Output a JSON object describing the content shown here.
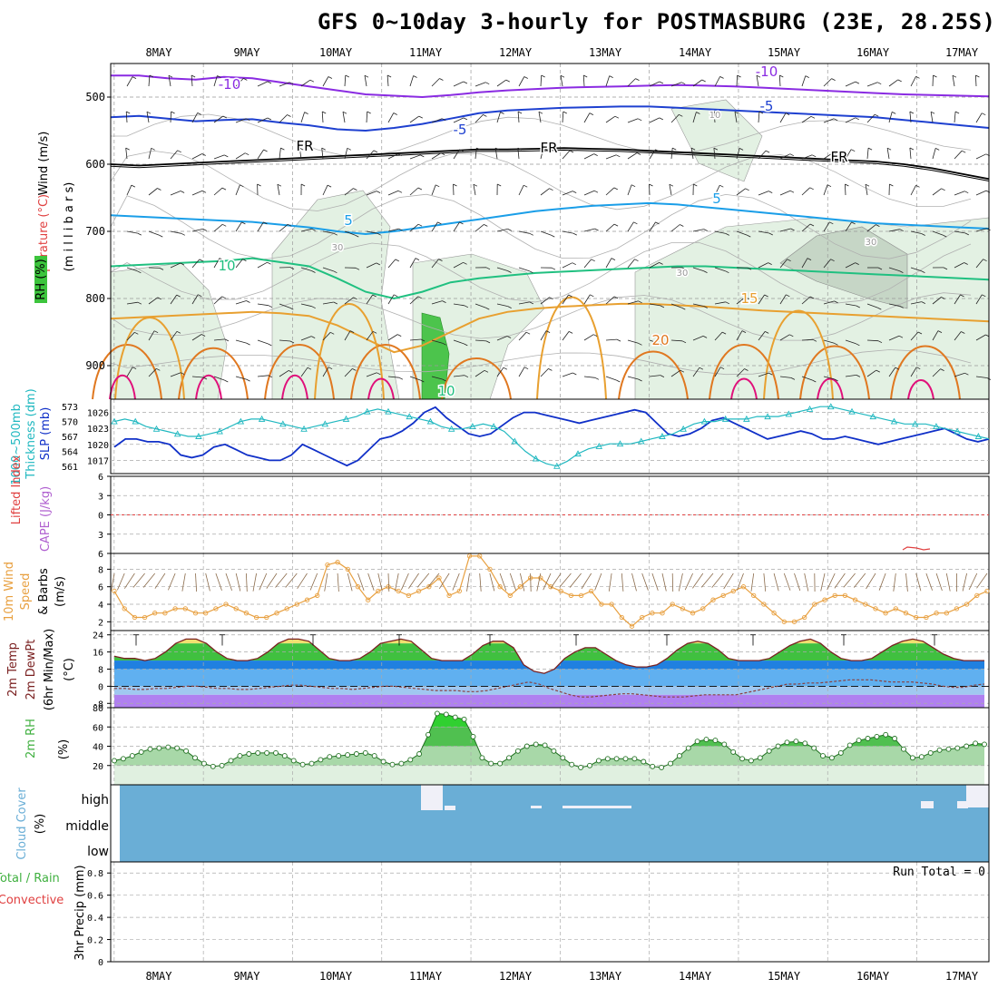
{
  "title": "GFS 0~10day 3-hourly for POSTMASBURG (23E, 28.25S)",
  "colors": {
    "temp_cold": "#8a2be2",
    "temp_cool": "#1e40d0",
    "temp_mild": "#1a9ee8",
    "temp_warm": "#20c080",
    "temp_hot": "#e8a030",
    "temp_hotter": "#e07820",
    "temp_hottest": "#e0107a",
    "slp": "#1030c8",
    "thickness": "#20b8c0",
    "wind10": "#e8a040",
    "rh": "#40b040",
    "cloud": "#6aaed6",
    "barb": "#8a6a4a"
  },
  "chart_data": [
    {
      "type": "line",
      "name": "upper-air",
      "ylabel_parts": [
        "Wind (m/s)",
        "Temperature (°C)",
        "RH (%)",
        "(m i l l i b a r s)"
      ],
      "yticks": [
        500,
        600,
        700,
        800,
        900
      ],
      "ylim": [
        450,
        950
      ],
      "x_dates": [
        "8MAY",
        "9MAY",
        "10MAY",
        "11MAY",
        "12MAY",
        "13MAY",
        "14MAY",
        "15MAY",
        "16MAY",
        "17MAY"
      ],
      "contour_labels": [
        "-10",
        "-10",
        "-5",
        "-5",
        "FR",
        "FR",
        "FR",
        "5",
        "5",
        "10",
        "15",
        "20",
        "10",
        "30",
        "30",
        "30",
        "10"
      ],
      "isotherms": [
        {
          "label": "-10",
          "p": [
            468,
            468,
            472,
            474,
            470,
            472,
            478,
            484,
            490,
            496,
            498,
            500,
            497,
            493,
            490,
            488,
            486,
            485,
            484,
            483,
            482,
            483,
            484,
            486,
            488,
            490,
            492,
            494,
            496,
            497,
            498,
            499
          ]
        },
        {
          "label": "-5",
          "p": [
            530,
            528,
            532,
            536,
            534,
            533,
            538,
            542,
            548,
            550,
            546,
            540,
            532,
            524,
            520,
            518,
            516,
            515,
            514,
            514,
            516,
            518,
            520,
            522,
            524,
            526,
            528,
            530,
            534,
            538,
            542,
            546
          ]
        },
        {
          "label": "FR",
          "p": [
            600,
            602,
            600,
            598,
            596,
            594,
            592,
            590,
            588,
            586,
            584,
            582,
            580,
            578,
            578,
            577,
            576,
            577,
            578,
            580,
            582,
            584,
            586,
            588,
            590,
            592,
            594,
            596,
            600,
            606,
            614,
            622
          ]
        },
        {
          "label": "5",
          "p": [
            676,
            678,
            680,
            682,
            684,
            686,
            690,
            694,
            700,
            704,
            700,
            694,
            688,
            682,
            676,
            670,
            666,
            662,
            660,
            658,
            660,
            664,
            668,
            672,
            676,
            680,
            684,
            688,
            690,
            692,
            694,
            696
          ]
        },
        {
          "label": "10",
          "p": [
            752,
            750,
            748,
            746,
            744,
            740,
            746,
            752,
            770,
            790,
            800,
            790,
            776,
            770,
            766,
            762,
            760,
            758,
            756,
            754,
            752,
            752,
            754,
            756,
            758,
            760,
            762,
            764,
            766,
            768,
            770,
            772
          ]
        },
        {
          "label": "15",
          "p": [
            830,
            828,
            826,
            824,
            822,
            820,
            822,
            826,
            840,
            860,
            880,
            870,
            850,
            830,
            820,
            815,
            812,
            810,
            808,
            808,
            810,
            812,
            815,
            818,
            820,
            822,
            824,
            826,
            828,
            830,
            832,
            834
          ]
        }
      ]
    },
    {
      "type": "line",
      "name": "slp-thickness",
      "ylabel_parts": [
        "1000~500mb",
        "Thickness (dm)",
        "SLP (mb)"
      ],
      "yticks_left": [
        573,
        570,
        567,
        564,
        561
      ],
      "yticks_right": [
        1026,
        1023,
        1020,
        1017
      ],
      "series": [
        {
          "name": "SLP",
          "unit": "mb",
          "values": [
            1019.5,
            1021,
            1021,
            1020.5,
            1020.5,
            1020,
            1018,
            1017.5,
            1018,
            1019.5,
            1020,
            1019,
            1018,
            1017.5,
            1017,
            1017,
            1018,
            1020,
            1019,
            1018,
            1017,
            1016,
            1017,
            1019,
            1021,
            1021.5,
            1022.5,
            1024,
            1026,
            1027,
            1025,
            1023.5,
            1022,
            1021.5,
            1022,
            1023.5,
            1025,
            1026,
            1026,
            1025.5,
            1025,
            1024.5,
            1024,
            1024.5,
            1025,
            1025.5,
            1026,
            1026.5,
            1026,
            1024,
            1022,
            1021.5,
            1022,
            1023,
            1024.5,
            1025,
            1024,
            1023,
            1022,
            1021,
            1021.5,
            1022,
            1022.5,
            1022,
            1021,
            1021,
            1021.5,
            1021,
            1020.5,
            1020,
            1020.5,
            1021,
            1021.5,
            1022,
            1022.5,
            1023,
            1022,
            1021,
            1020.5,
            1021
          ]
        },
        {
          "name": "Thickness",
          "unit": "dm",
          "values": [
            570,
            570.5,
            570,
            569,
            568.5,
            568,
            567.5,
            567,
            567,
            567.5,
            568,
            569,
            570,
            570.5,
            570.5,
            570,
            569.5,
            569,
            568.5,
            569,
            569.5,
            570,
            570.5,
            571,
            572,
            572.5,
            572,
            571.5,
            571,
            570.5,
            570,
            569,
            568.5,
            568.5,
            569,
            569.5,
            569,
            568,
            566,
            564,
            562.5,
            561.5,
            561,
            562,
            563.5,
            564.5,
            565,
            565.5,
            565.5,
            565.5,
            566,
            566.5,
            567,
            567.5,
            568.5,
            569.5,
            570,
            570,
            570.5,
            570.5,
            570.5,
            571,
            571,
            571,
            571.5,
            572,
            572.5,
            573,
            573,
            572.5,
            572,
            571.5,
            571,
            570.5,
            570,
            569.5,
            569.5,
            569.5,
            569,
            568.5,
            568,
            567.5,
            567,
            566.5
          ]
        }
      ]
    },
    {
      "type": "line",
      "name": "stability",
      "ylabel_parts": [
        "Lifted Index",
        "CAPE (J/kg)"
      ],
      "yticks": [
        -6,
        -3,
        0,
        3,
        6
      ],
      "series": [
        {
          "name": "Lifted Index",
          "values": []
        }
      ]
    },
    {
      "type": "line",
      "name": "10m-wind",
      "ylabel_parts": [
        "10m Wind",
        "Speed",
        "& Barbs",
        "(m/s)"
      ],
      "yticks": [
        8,
        6,
        4,
        2
      ],
      "ylim": [
        1,
        9.5
      ],
      "series": [
        {
          "name": "Speed",
          "values": [
            5.5,
            3.5,
            2.5,
            2.5,
            3,
            3,
            3.5,
            3.5,
            3,
            3,
            3.5,
            4,
            3.5,
            3,
            2.5,
            2.5,
            3,
            3.5,
            4,
            4.5,
            5,
            8.5,
            8.8,
            8,
            6,
            4.5,
            5.5,
            6,
            5.5,
            5,
            5.5,
            6,
            7,
            5,
            5.5,
            9.5,
            9.5,
            8,
            6,
            5,
            6,
            7,
            7,
            6,
            5.5,
            5,
            5,
            5.5,
            4,
            4,
            2.5,
            1.5,
            2.5,
            3,
            3,
            4,
            3.5,
            3,
            3.5,
            4.5,
            5,
            5.5,
            6,
            5,
            4,
            3,
            2,
            2,
            2.5,
            4,
            4.5,
            5,
            5,
            4.5,
            4,
            3.5,
            3,
            3.5,
            3,
            2.5,
            2.5,
            3,
            3,
            3.5,
            4,
            5,
            5.5
          ]
        }
      ]
    },
    {
      "type": "area",
      "name": "2m-temp",
      "ylabel_parts": [
        "2m Temp",
        "2m DewPt",
        "(6hr Min/Max)",
        "(°C)"
      ],
      "yticks": [
        24,
        16,
        8,
        0,
        -8
      ],
      "ylim": [
        -10,
        26
      ],
      "series": [
        {
          "name": "2m Temp",
          "values": [
            14,
            13,
            13,
            12,
            13,
            16,
            20,
            22,
            22,
            20,
            16,
            13,
            12,
            12,
            13,
            16,
            20,
            22,
            22,
            21,
            17,
            13,
            12,
            12,
            13,
            16,
            20,
            21,
            22,
            21,
            17,
            13,
            12,
            12,
            12,
            15,
            19,
            21,
            21,
            18,
            10,
            7,
            6,
            8,
            13,
            16,
            18,
            18,
            15,
            12,
            10,
            9,
            9,
            10,
            13,
            17,
            20,
            21,
            20,
            17,
            13,
            12,
            12,
            12,
            13,
            16,
            19,
            21,
            22,
            20,
            16,
            13,
            12,
            12,
            13,
            16,
            19,
            21,
            22,
            21,
            18,
            15,
            13,
            12,
            12,
            12
          ]
        },
        {
          "name": "2m DewPt",
          "values": [
            -1,
            -1,
            -1.5,
            -1.5,
            -1,
            -1,
            -0.5,
            0,
            0,
            -0.5,
            -1,
            -1,
            -1.5,
            -1.5,
            -1,
            -0.5,
            0,
            0.5,
            0.5,
            0,
            -0.5,
            -1,
            -1,
            -1.5,
            -1,
            -0.5,
            0,
            0,
            -0.5,
            -1,
            -1.5,
            -2,
            -2,
            -2,
            -2.5,
            -2.5,
            -2,
            -1,
            0,
            1,
            2,
            1,
            -1,
            -2.5,
            -4,
            -5,
            -5,
            -4.5,
            -4,
            -3.5,
            -3.5,
            -4,
            -4.5,
            -5,
            -5,
            -5,
            -4.5,
            -4,
            -4,
            -4,
            -4,
            -3,
            -2,
            -1,
            0,
            1,
            1,
            1.5,
            1.5,
            2,
            2.5,
            3,
            3,
            3,
            2.5,
            2,
            2,
            2,
            1.5,
            1,
            0,
            -0.5,
            -0.5,
            0.5,
            1
          ]
        }
      ]
    },
    {
      "type": "area",
      "name": "2m-rh",
      "ylabel_parts": [
        "2m RH",
        "(%)"
      ],
      "yticks": [
        80,
        60,
        40,
        20
      ],
      "ylim": [
        0,
        80
      ],
      "series": [
        {
          "name": "2m RH",
          "values": [
            25,
            27,
            30,
            34,
            37,
            38,
            39,
            38,
            35,
            28,
            22,
            19,
            20,
            25,
            30,
            32,
            33,
            33,
            33,
            30,
            25,
            21,
            22,
            26,
            29,
            30,
            31,
            32,
            33,
            30,
            24,
            21,
            22,
            26,
            32,
            52,
            74,
            73,
            70,
            68,
            50,
            28,
            22,
            22,
            28,
            35,
            40,
            42,
            41,
            35,
            28,
            21,
            18,
            20,
            25,
            27,
            27,
            27,
            27,
            24,
            19,
            18,
            22,
            30,
            38,
            45,
            47,
            46,
            42,
            34,
            27,
            25,
            28,
            35,
            40,
            44,
            45,
            43,
            38,
            30,
            28,
            33,
            41,
            46,
            48,
            50,
            52,
            48,
            37,
            28,
            29,
            33,
            36,
            37,
            38,
            40,
            43,
            42
          ]
        }
      ]
    },
    {
      "type": "heatmap",
      "name": "cloud-cover",
      "ylabel_parts": [
        "Cloud Cover",
        "(%)"
      ],
      "levels": [
        "high",
        "middle",
        "low"
      ]
    },
    {
      "type": "line",
      "name": "precip",
      "ylabel_parts": [
        "Total / Rain",
        "Convective",
        "3hr Precip (mm)"
      ],
      "yticks": [
        "0.8",
        "0.6",
        "0.4",
        "0.2",
        "0"
      ],
      "ylim": [
        0,
        0.9
      ],
      "run_total": "Run Total = 0",
      "series": [
        {
          "name": "Total",
          "values": []
        }
      ]
    }
  ]
}
